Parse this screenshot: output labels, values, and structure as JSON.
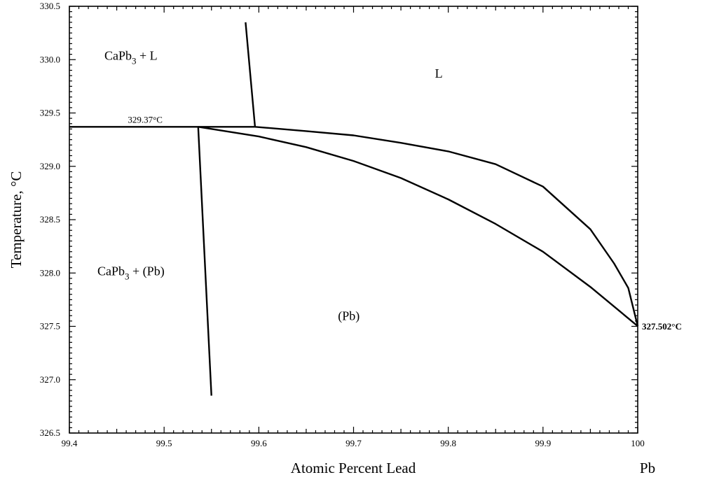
{
  "chart_data": {
    "type": "line",
    "title": "",
    "xlabel": "Atomic Percent Lead",
    "ylabel": "Temperature, °C",
    "xlim": [
      99.4,
      100.0
    ],
    "ylim": [
      326.5,
      330.5
    ],
    "x_ticks": [
      "99.4",
      "99.5",
      "99.6",
      "99.7",
      "99.8",
      "99.9",
      "100"
    ],
    "y_ticks": [
      "326.5",
      "327.0",
      "327.5",
      "328.0",
      "328.5",
      "329.0",
      "329.5",
      "330.0",
      "330.5"
    ],
    "x_end_label": "Pb",
    "grid": false,
    "series": [
      {
        "x": [
          99.4,
          99.596
        ],
        "y": [
          329.37,
          329.37
        ]
      },
      {
        "x": [
          99.586,
          99.596
        ],
        "y": [
          330.35,
          329.37
        ]
      },
      {
        "x": [
          99.536,
          99.55
        ],
        "y": [
          329.37,
          326.85
        ]
      },
      {
        "x": [
          99.596,
          99.65,
          99.7,
          99.75,
          99.8,
          99.85,
          99.9,
          99.95,
          99.975,
          99.99,
          100.0
        ],
        "y": [
          329.37,
          329.33,
          329.29,
          329.22,
          329.14,
          329.02,
          328.81,
          328.41,
          328.09,
          327.86,
          327.502
        ]
      },
      {
        "x": [
          99.536,
          99.6,
          99.65,
          99.7,
          99.75,
          99.8,
          99.85,
          99.9,
          99.95,
          100.0
        ],
        "y": [
          329.37,
          329.28,
          329.18,
          329.05,
          328.89,
          328.69,
          328.46,
          328.2,
          327.87,
          327.502
        ]
      }
    ],
    "regions": [
      {
        "label_base": "CaPb",
        "label_sub": "3",
        "label_rest": " + L",
        "x": 99.465,
        "y": 330.0
      },
      {
        "label_base": "L",
        "label_sub": "",
        "label_rest": "",
        "x": 99.79,
        "y": 329.83
      },
      {
        "label_base": "CaPb",
        "label_sub": "3",
        "label_rest": " + (Pb)",
        "x": 99.465,
        "y": 327.98
      },
      {
        "label_base": "(Pb)",
        "label_sub": "",
        "label_rest": "",
        "x": 99.695,
        "y": 327.56
      }
    ],
    "annotations": [
      {
        "text": "329.37°C",
        "x": 99.48,
        "y": 329.37,
        "bold": false
      },
      {
        "text": "327.502°C",
        "x": 100.0,
        "y": 327.502,
        "bold": true
      }
    ]
  }
}
